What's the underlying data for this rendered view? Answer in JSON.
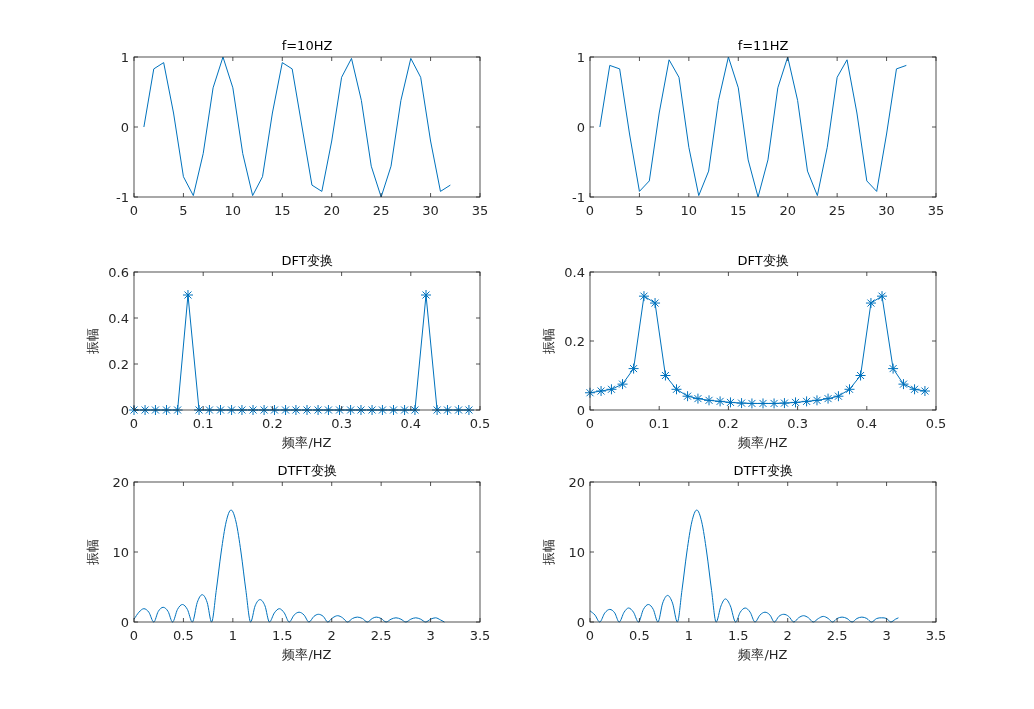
{
  "chart_data": [
    {
      "type": "line",
      "title": "f=10HZ",
      "color": "#0072bd",
      "xlim": [
        0,
        35
      ],
      "xticks": [
        0,
        5,
        10,
        15,
        20,
        25,
        30,
        35
      ],
      "ylim": [
        -1,
        1
      ],
      "yticks": [
        -1,
        0,
        1
      ],
      "x": [
        1,
        2,
        3,
        4,
        5,
        6,
        7,
        8,
        9,
        10,
        11,
        12,
        13,
        14,
        15,
        16,
        17,
        18,
        19,
        20,
        21,
        22,
        23,
        24,
        25,
        26,
        27,
        28,
        29,
        30,
        31,
        32
      ],
      "values": [
        0,
        0.83,
        0.92,
        0.2,
        -0.71,
        -0.98,
        -0.38,
        0.56,
        1,
        0.56,
        -0.38,
        -0.98,
        -0.71,
        0.2,
        0.92,
        0.83,
        0,
        -0.83,
        -0.92,
        -0.2,
        0.71,
        0.98,
        0.38,
        -0.56,
        -1,
        -0.56,
        0.38,
        0.98,
        0.71,
        -0.2,
        -0.92,
        -0.83
      ]
    },
    {
      "type": "line",
      "title": "f=11HZ",
      "color": "#0072bd",
      "xlim": [
        0,
        35
      ],
      "xticks": [
        0,
        5,
        10,
        15,
        20,
        25,
        30,
        35
      ],
      "ylim": [
        -1,
        1
      ],
      "yticks": [
        -1,
        0,
        1
      ],
      "x": [
        1,
        2,
        3,
        4,
        5,
        6,
        7,
        8,
        9,
        10,
        11,
        12,
        13,
        14,
        15,
        16,
        17,
        18,
        19,
        20,
        21,
        22,
        23,
        24,
        25,
        26,
        27,
        28,
        29,
        30,
        31,
        32
      ],
      "values": [
        0,
        0.88,
        0.83,
        -0.1,
        -0.92,
        -0.77,
        0.2,
        0.96,
        0.71,
        -0.29,
        -0.98,
        -0.63,
        0.38,
        1,
        0.56,
        -0.47,
        -1,
        -0.47,
        0.56,
        1,
        0.38,
        -0.63,
        -0.98,
        -0.29,
        0.71,
        0.96,
        0.2,
        -0.77,
        -0.92,
        -0.1,
        0.83,
        0.88
      ]
    },
    {
      "type": "line",
      "title": "DFT变换",
      "xlabel": "频率/HZ",
      "ylabel": "振幅",
      "color": "#0072bd",
      "marker": "cross",
      "xlim": [
        0,
        0.5
      ],
      "xticks": [
        0,
        0.1,
        0.2,
        0.3,
        0.4,
        0.5
      ],
      "ylim": [
        0,
        0.6
      ],
      "yticks": [
        0,
        0.2,
        0.4,
        0.6
      ],
      "x": [
        0,
        0.016,
        0.031,
        0.047,
        0.063,
        0.078,
        0.094,
        0.109,
        0.125,
        0.141,
        0.156,
        0.172,
        0.188,
        0.203,
        0.219,
        0.234,
        0.25,
        0.266,
        0.281,
        0.297,
        0.313,
        0.328,
        0.344,
        0.359,
        0.375,
        0.391,
        0.406,
        0.422,
        0.438,
        0.453,
        0.469,
        0.484
      ],
      "values": [
        0,
        0,
        0,
        0,
        0,
        0.5,
        0,
        0,
        0,
        0,
        0,
        0,
        0,
        0,
        0,
        0,
        0,
        0,
        0,
        0,
        0,
        0,
        0,
        0,
        0,
        0,
        0,
        0.5,
        0,
        0,
        0,
        0
      ]
    },
    {
      "type": "line",
      "title": "DFT变换",
      "xlabel": "频率/HZ",
      "ylabel": "振幅",
      "color": "#0072bd",
      "marker": "cross",
      "xlim": [
        0,
        0.5
      ],
      "xticks": [
        0,
        0.1,
        0.2,
        0.3,
        0.4,
        0.5
      ],
      "ylim": [
        0,
        0.4
      ],
      "yticks": [
        0,
        0.2,
        0.4
      ],
      "x": [
        0,
        0.016,
        0.031,
        0.047,
        0.063,
        0.078,
        0.094,
        0.109,
        0.125,
        0.141,
        0.156,
        0.172,
        0.188,
        0.203,
        0.219,
        0.234,
        0.25,
        0.266,
        0.281,
        0.297,
        0.313,
        0.328,
        0.344,
        0.359,
        0.375,
        0.391,
        0.406,
        0.422,
        0.438,
        0.453,
        0.469,
        0.484
      ],
      "values": [
        0.05,
        0.055,
        0.06,
        0.075,
        0.12,
        0.33,
        0.31,
        0.1,
        0.06,
        0.04,
        0.033,
        0.028,
        0.025,
        0.022,
        0.02,
        0.019,
        0.019,
        0.019,
        0.02,
        0.022,
        0.025,
        0.028,
        0.033,
        0.04,
        0.06,
        0.1,
        0.31,
        0.33,
        0.12,
        0.075,
        0.06,
        0.055
      ]
    },
    {
      "type": "line",
      "title": "DTFT变换",
      "xlabel": "频率/HZ",
      "ylabel": "振幅",
      "color": "#0072bd",
      "xlim": [
        0,
        3.5
      ],
      "xticks": [
        0,
        0.5,
        1,
        1.5,
        2,
        2.5,
        3,
        3.5
      ],
      "ylim": [
        0,
        20
      ],
      "yticks": [
        0,
        10,
        20
      ],
      "x": [
        0,
        0.05,
        0.1,
        0.15,
        0.2,
        0.245,
        0.295,
        0.345,
        0.39,
        0.44,
        0.49,
        0.54,
        0.59,
        0.64,
        0.69,
        0.74,
        0.785,
        0.832,
        0.882,
        0.932,
        0.982,
        1.032,
        1.082,
        1.132,
        1.18,
        1.225,
        1.275,
        1.325,
        1.37,
        1.42,
        1.47,
        1.52,
        1.57,
        1.62,
        1.67,
        1.72,
        1.77,
        1.82,
        1.865,
        1.915,
        1.96,
        2.01,
        2.06,
        2.11,
        2.16,
        2.21,
        2.26,
        2.31,
        2.36,
        2.41,
        2.45,
        2.5,
        2.55,
        2.6,
        2.65,
        2.7,
        2.75,
        2.8,
        2.85,
        2.9,
        2.95,
        3,
        3.05,
        3.1,
        3.14
      ],
      "values": [
        0.4,
        1.4,
        1.9,
        1.4,
        0,
        1.5,
        2.1,
        1.5,
        0,
        1.8,
        2.5,
        1.8,
        0,
        2.8,
        3.9,
        2.8,
        0,
        4.5,
        10,
        14.3,
        16,
        14.3,
        10,
        4.5,
        0,
        2.3,
        3.2,
        2.3,
        0,
        1.3,
        1.9,
        1.3,
        0,
        1,
        1.4,
        1,
        0,
        0.8,
        1.1,
        0.8,
        0,
        0.6,
        0.9,
        0.6,
        0,
        0.5,
        0.7,
        0.5,
        0,
        0.5,
        0.7,
        0.5,
        0,
        0.4,
        0.6,
        0.4,
        0,
        0.4,
        0.6,
        0.4,
        0,
        0.4,
        0.6,
        0.3,
        0
      ]
    },
    {
      "type": "line",
      "title": "DTFT变换",
      "xlabel": "频率/HZ",
      "ylabel": "振幅",
      "color": "#0072bd",
      "xlim": [
        0,
        3.5
      ],
      "xticks": [
        0,
        0.5,
        1,
        1.5,
        2,
        2.5,
        3,
        3.5
      ],
      "ylim": [
        0,
        20
      ],
      "yticks": [
        0,
        10,
        20
      ],
      "x": [
        0,
        0.05,
        0.098,
        0.15,
        0.2,
        0.25,
        0.295,
        0.345,
        0.39,
        0.44,
        0.49,
        0.54,
        0.59,
        0.64,
        0.687,
        0.735,
        0.785,
        0.835,
        0.884,
        0.93,
        0.98,
        1.03,
        1.08,
        1.13,
        1.18,
        1.23,
        1.276,
        1.325,
        1.37,
        1.42,
        1.473,
        1.52,
        1.57,
        1.62,
        1.669,
        1.72,
        1.77,
        1.82,
        1.865,
        1.91,
        1.96,
        2.01,
        2.062,
        2.11,
        2.16,
        2.21,
        2.258,
        2.31,
        2.36,
        2.41,
        2.454,
        2.5,
        2.55,
        2.6,
        2.651,
        2.7,
        2.75,
        2.8,
        2.847,
        2.9,
        2.95,
        3,
        3.043,
        3.09,
        3.12
      ],
      "values": [
        1.6,
        1,
        0,
        1.3,
        1.8,
        1.3,
        0,
        1.4,
        2,
        1.4,
        0,
        1.8,
        2.5,
        1.8,
        0,
        2.7,
        3.8,
        2.7,
        0,
        4.5,
        10,
        14.3,
        16,
        14.3,
        10,
        4.5,
        0,
        2.3,
        3.3,
        2.3,
        0,
        1.4,
        2,
        1.4,
        0,
        1,
        1.4,
        1,
        0,
        0.8,
        1.1,
        0.8,
        0,
        0.6,
        0.9,
        0.6,
        0,
        0.5,
        0.8,
        0.5,
        0,
        0.5,
        0.7,
        0.5,
        0,
        0.5,
        0.7,
        0.5,
        0,
        0.5,
        0.6,
        0.5,
        0,
        0.4,
        0.6
      ]
    }
  ]
}
